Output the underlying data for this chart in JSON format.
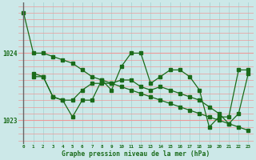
{
  "background_color": "#cce8e8",
  "grid_color_v": "#aad4d4",
  "grid_color_h": "#ee9999",
  "line_color": "#1a6b1a",
  "ylabel_1023": 1023.0,
  "ylabel_1024": 1024.0,
  "xlabel": "Graphe pression niveau de la mer (hPa)",
  "xlim_min": -0.5,
  "xlim_max": 23.5,
  "ylim_min": 1022.65,
  "ylim_max": 1024.75,
  "series1_x": [
    0,
    1,
    2,
    3,
    4,
    5,
    6,
    7,
    8,
    9,
    10,
    11,
    12,
    13,
    14,
    15,
    16,
    17,
    18,
    19,
    20,
    21,
    22,
    23
  ],
  "series1_y": [
    1024.6,
    1024.0,
    1024.0,
    1023.95,
    1023.9,
    1023.85,
    1023.75,
    1023.65,
    1023.6,
    1023.55,
    1023.5,
    1023.45,
    1023.4,
    1023.35,
    1023.3,
    1023.25,
    1023.2,
    1023.15,
    1023.1,
    1023.05,
    1023.0,
    1022.95,
    1022.9,
    1022.85
  ],
  "series2_x": [
    1,
    2,
    3,
    4,
    5,
    6,
    7,
    8,
    9,
    10,
    11,
    12,
    13,
    14,
    15,
    16,
    17,
    18,
    19,
    20,
    21,
    22,
    23
  ],
  "series2_y": [
    1023.7,
    1023.65,
    1023.35,
    1023.3,
    1023.05,
    1023.3,
    1023.3,
    1023.6,
    1023.45,
    1023.8,
    1024.0,
    1024.0,
    1023.55,
    1023.65,
    1023.75,
    1023.75,
    1023.65,
    1023.45,
    1022.9,
    1023.05,
    1023.05,
    1023.75,
    1023.75
  ],
  "series3_x": [
    1,
    2,
    3,
    4,
    5,
    6,
    7,
    8,
    9,
    10,
    11,
    12,
    13,
    14,
    15,
    16,
    17,
    18,
    19,
    20,
    21,
    22,
    23
  ],
  "series3_y": [
    1023.65,
    1023.65,
    1023.35,
    1023.3,
    1023.3,
    1023.45,
    1023.55,
    1023.55,
    1023.55,
    1023.6,
    1023.6,
    1023.5,
    1023.45,
    1023.5,
    1023.45,
    1023.4,
    1023.35,
    1023.3,
    1023.2,
    1023.1,
    1022.95,
    1023.1,
    1023.7
  ]
}
